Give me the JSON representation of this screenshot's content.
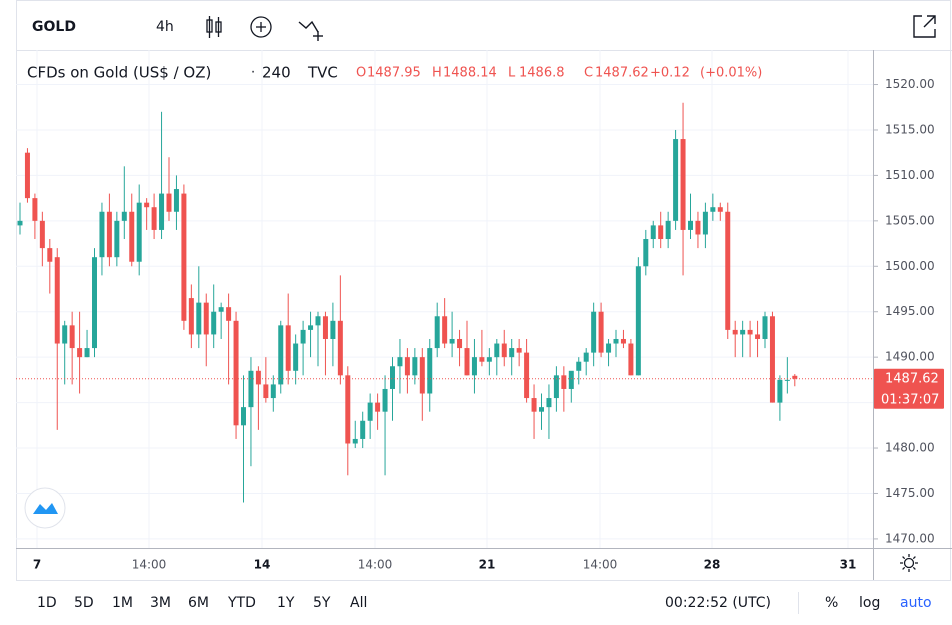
{
  "toolbar": {
    "symbol": "GOLD",
    "interval": "4h"
  },
  "legend": {
    "name": "CFDs on Gold (US$ / OZ)",
    "separator": "·",
    "resolution": "240",
    "source": "TVC",
    "ohlc": [
      {
        "label": "O",
        "value": 1487.95
      },
      {
        "label": "H",
        "value": 1488.14
      },
      {
        "label": "L",
        "value": 1486.8
      },
      {
        "label": "C",
        "value": 1487.62
      }
    ],
    "change": "+0.12",
    "change_percent": "(+0.01%)"
  },
  "chart_data": {
    "type": "candlestick",
    "up_color": "#26a69a",
    "down_color": "#ef5350",
    "open": [
      1504.5,
      1512.5,
      1507.5,
      1505,
      1502,
      1501,
      1491.5,
      1493.5,
      1491,
      1490,
      1491,
      1501,
      1506,
      1501,
      1505,
      1506,
      1500.5,
      1507,
      1506.5,
      1504,
      1508,
      1506,
      1508,
      1496.5,
      1492.5,
      1496,
      1492.5,
      1495,
      1495.5,
      1494,
      1482.5,
      1484.5,
      1488.5,
      1487,
      1485.5,
      1487,
      1493.5,
      1488.5,
      1491.5,
      1493,
      1493.5,
      1494.5,
      1492,
      1494,
      1488,
      1480.5,
      1481,
      1483,
      1485,
      1484,
      1486.5,
      1489,
      1490,
      1488,
      1490,
      1486,
      1491,
      1494.5,
      1491.5,
      1492,
      1491,
      1488,
      1490,
      1489.5,
      1490,
      1491.5,
      1490,
      1491,
      1490.5,
      1485.5,
      1484,
      1484.5,
      1485.5,
      1488,
      1486.5,
      1488.5,
      1489.5,
      1490.5,
      1495,
      1490.5,
      1491.5,
      1492,
      1491.5,
      1488,
      1500,
      1503,
      1504.5,
      1503,
      1505,
      1514,
      1504,
      1505,
      1503.5,
      1506,
      1506.5,
      1506,
      1493,
      1492.5,
      1493,
      1492.5,
      1492,
      1494.5,
      1485,
      1487.5,
      1487.95
    ],
    "high": [
      1507,
      1513,
      1508,
      1506,
      1503,
      1502,
      1494,
      1495,
      1495,
      1493,
      1502,
      1507,
      1508,
      1506,
      1511,
      1508,
      1509,
      1507.5,
      1508,
      1517,
      1512,
      1510,
      1509,
      1498,
      1500,
      1497,
      1498,
      1496,
      1497,
      1495,
      1488,
      1490,
      1489,
      1490,
      1488,
      1494,
      1497,
      1492.5,
      1494,
      1495,
      1495,
      1495,
      1496,
      1499,
      1489,
      1483,
      1484,
      1486,
      1486,
      1488,
      1490,
      1492,
      1491,
      1491,
      1491,
      1492,
      1496,
      1496.5,
      1495,
      1493,
      1494,
      1492,
      1493,
      1491,
      1492,
      1493,
      1492,
      1492,
      1492,
      1487,
      1486,
      1487,
      1489,
      1489,
      1488,
      1490,
      1491,
      1496,
      1496,
      1492,
      1493,
      1493,
      1492,
      1501,
      1504,
      1505,
      1506,
      1506,
      1515,
      1518,
      1508,
      1506,
      1507,
      1508,
      1507,
      1507,
      1494,
      1494,
      1494,
      1494,
      1495,
      1495,
      1488,
      1490,
      1488.14
    ],
    "low": [
      1503.5,
      1507,
      1503,
      1500,
      1497,
      1482,
      1487,
      1487,
      1486,
      1490,
      1490,
      1499,
      1500,
      1500,
      1503,
      1500,
      1499,
      1504,
      1503,
      1503,
      1505,
      1504,
      1493,
      1491,
      1491,
      1489,
      1491,
      1492,
      1487,
      1481,
      1474,
      1478,
      1482,
      1485,
      1484,
      1486,
      1487,
      1487,
      1488,
      1490,
      1489,
      1488,
      1489,
      1487,
      1477,
      1480,
      1480,
      1481,
      1482,
      1477,
      1483,
      1486,
      1486,
      1487,
      1483,
      1484,
      1490,
      1491,
      1490,
      1489,
      1488,
      1486,
      1489,
      1488,
      1488,
      1489,
      1488,
      1489,
      1485,
      1481,
      1482,
      1481,
      1484,
      1484,
      1485,
      1487,
      1488,
      1489,
      1490,
      1489,
      1490,
      1491,
      1488,
      1488,
      1499,
      1502,
      1502,
      1502,
      1504,
      1499,
      1503,
      1502,
      1502,
      1505,
      1505,
      1492,
      1490,
      1490,
      1490,
      1490,
      1491,
      1485,
      1483,
      1486,
      1486.8
    ],
    "close": [
      1505,
      1507.5,
      1505,
      1502,
      1500.5,
      1491.5,
      1493.5,
      1491,
      1490,
      1491,
      1501,
      1506,
      1501,
      1505,
      1506,
      1500.5,
      1507,
      1506.5,
      1504,
      1508,
      1506,
      1508.5,
      1494,
      1492.5,
      1496,
      1492.5,
      1495,
      1495.5,
      1494,
      1482.5,
      1484.5,
      1488.5,
      1487,
      1485.5,
      1487,
      1493.5,
      1488.5,
      1491.5,
      1493,
      1493.5,
      1494.5,
      1492,
      1494,
      1488,
      1480.5,
      1481,
      1483,
      1485,
      1484,
      1486.5,
      1489,
      1490,
      1488,
      1490,
      1486,
      1491,
      1494.5,
      1491.5,
      1492,
      1491,
      1488,
      1490,
      1489.5,
      1490,
      1491.5,
      1490,
      1491,
      1490.5,
      1485.5,
      1484,
      1484.5,
      1485.5,
      1488,
      1486.5,
      1488.5,
      1489.5,
      1490.5,
      1495,
      1490.5,
      1491.5,
      1492,
      1491.5,
      1488,
      1500,
      1503,
      1504.5,
      1503,
      1505,
      1514,
      1504,
      1505,
      1503.5,
      1506,
      1506.5,
      1506,
      1493,
      1492.5,
      1493,
      1492.5,
      1492,
      1494.5,
      1485,
      1487.5,
      1487.5,
      1487.62
    ],
    "x_labels": [
      "7",
      "14:00",
      "14",
      "14:00",
      "21",
      "14:00",
      "28",
      "31"
    ],
    "ylim": [
      1469,
      1523.8
    ],
    "yticks": [
      {
        "value": 1470,
        "label": "1470.00"
      },
      {
        "value": 1475,
        "label": "1475.00"
      },
      {
        "value": 1480,
        "label": "1480.00"
      },
      {
        "value": 1485,
        "label": "1485.00"
      },
      {
        "value": 1490,
        "label": "1490.00"
      },
      {
        "value": 1495,
        "label": "1495.00"
      },
      {
        "value": 1500,
        "label": "1500.00"
      },
      {
        "value": 1505,
        "label": "1505.00"
      },
      {
        "value": 1510,
        "label": "1510.00"
      },
      {
        "value": 1515,
        "label": "1515.00"
      },
      {
        "value": 1520,
        "label": "1520.00"
      }
    ],
    "grid": true,
    "last_price": 1487.62,
    "countdown": "01:37:07"
  },
  "bottom_bar": {
    "ranges": [
      "1D",
      "5D",
      "1M",
      "3M",
      "6M",
      "YTD",
      "1Y",
      "5Y",
      "All"
    ],
    "clock": "00:22:52 (UTC)",
    "percent": "%",
    "log": "log",
    "auto": "auto"
  }
}
